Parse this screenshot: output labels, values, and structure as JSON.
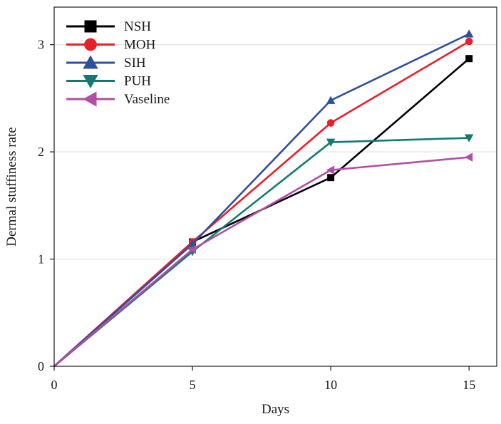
{
  "chart_data": {
    "type": "line",
    "title": "",
    "xlabel": "Days",
    "ylabel": "Dermal stuffiness rate",
    "x": [
      0,
      5,
      10,
      15
    ],
    "xlim": [
      0,
      16
    ],
    "ylim": [
      0,
      3.35
    ],
    "xticks": [
      0,
      5,
      10,
      15
    ],
    "yticks": [
      0,
      1,
      2,
      3
    ],
    "grid": "horizontal",
    "legend": "top-left",
    "series": [
      {
        "name": "NSH",
        "color": "#000000",
        "marker": "square",
        "values": [
          0,
          1.16,
          1.76,
          2.87
        ]
      },
      {
        "name": "MOH",
        "color": "#e8202a",
        "marker": "circle",
        "values": [
          0,
          1.16,
          2.27,
          3.03
        ]
      },
      {
        "name": "SIH",
        "color": "#2e4f9e",
        "marker": "triangle-up",
        "values": [
          0,
          1.14,
          2.48,
          3.1
        ]
      },
      {
        "name": "PUH",
        "color": "#137a72",
        "marker": "triangle-down",
        "values": [
          0,
          1.07,
          2.09,
          2.13
        ]
      },
      {
        "name": "Vaseline",
        "color": "#b04fa5",
        "marker": "triangle-left",
        "values": [
          0,
          1.09,
          1.83,
          1.95
        ]
      }
    ]
  }
}
